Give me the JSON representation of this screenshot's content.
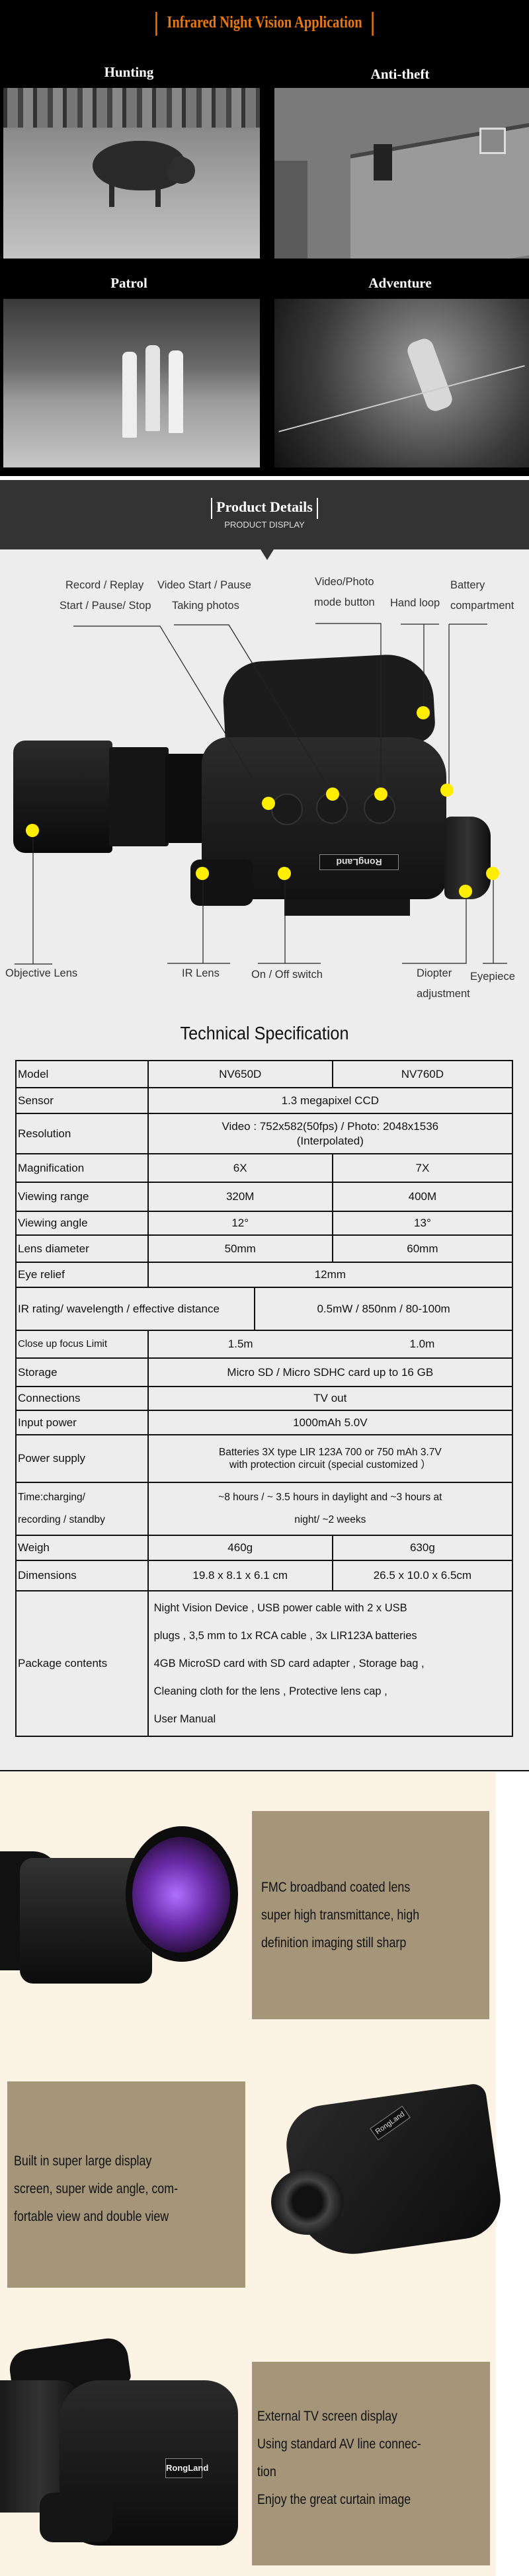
{
  "application": {
    "title": "Infrared Night Vision Application",
    "scenes": [
      {
        "label": "Hunting"
      },
      {
        "label": "Anti-theft"
      },
      {
        "label": "Patrol"
      },
      {
        "label": "Adventure"
      }
    ],
    "title_color": "#e8780f"
  },
  "product_details": {
    "title": "Product Details",
    "subtitle": "PRODUCT DISPLAY",
    "callouts": {
      "record_replay": "Record / Replay",
      "start_pause_stop": "Start / Pause/ Stop",
      "video_start_pause": "Video Start / Pause",
      "taking_photos": "Taking photos",
      "video_photo": "Video/Photo",
      "mode_button": "mode button",
      "hand_loop": "Hand loop",
      "battery": "Battery",
      "compartment": "compartment",
      "objective_lens": "Objective Lens",
      "ir_lens": "IR Lens",
      "on_off_switch": "On / Off switch",
      "diopter": "Diopter",
      "adjustment": "adjustment",
      "eyepiece": "Eyepiece"
    },
    "brand_plate": "RongLand",
    "marker_color": "#ffee00"
  },
  "spec": {
    "title": "Technical Specification",
    "rows": {
      "model": {
        "label": "Model",
        "a": "NV650D",
        "b": "NV760D"
      },
      "sensor": {
        "label": "Sensor",
        "value": "1.3 megapixel CCD"
      },
      "resolution": {
        "label": "Resolution",
        "value": "Video : 752x582(50fps) / Photo: 2048x1536",
        "value2": "(Interpolated)"
      },
      "magnification": {
        "label": "Magnification",
        "a": "6X",
        "b": "7X"
      },
      "viewing_range": {
        "label": "Viewing range",
        "a": "320M",
        "b": "400M"
      },
      "viewing_angle": {
        "label": "Viewing angle",
        "a": "12°",
        "b": "13°"
      },
      "lens_diameter": {
        "label": "Lens diameter",
        "a": "50mm",
        "b": "60mm"
      },
      "eye_relief": {
        "label": "Eye relief",
        "value": "12mm"
      },
      "ir_rating": {
        "label": "IR rating/ wavelength / effective distance",
        "value": "0.5mW / 850nm / 80-100m"
      },
      "close_up": {
        "label": "Close up focus Limit",
        "a": "1.5m",
        "b": "1.0m"
      },
      "storage": {
        "label": "Storage",
        "value": "Micro SD / Micro SDHC card up to 16 GB"
      },
      "connections": {
        "label": "Connections",
        "value": "TV out"
      },
      "input_power": {
        "label": "Input power",
        "value": "1000mAh 5.0V"
      },
      "power_supply": {
        "label": "Power supply",
        "value": "Batteries 3X type LIR 123A 700 or 750 mAh 3.7V",
        "value2": "with protection circuit (special customized ）"
      },
      "time": {
        "label": "Time:charging/",
        "label2": "recording / standby",
        "value": "~8 hours / ~ 3.5 hours in daylight and ~3 hours at",
        "value2": "night/ ~2 weeks"
      },
      "weigh": {
        "label": "Weigh",
        "a": "460g",
        "b": "630g"
      },
      "dimensions": {
        "label": "Dimensions",
        "a": "19.8 x 8.1 x 6.1 cm",
        "b": "26.5 x 10.0 x 6.5cm"
      },
      "package": {
        "label": "Package contents",
        "lines": [
          "Night Vision Device , USB power cable with 2 x USB",
          "plugs , 3,5 mm to 1x RCA cable , 3x LIR123A batteries",
          "4GB MicroSD card with SD card adapter , Storage bag ,",
          "Cleaning cloth for the lens , Protective lens cap ,",
          "User Manual"
        ]
      }
    }
  },
  "features": [
    {
      "lines": [
        "FMC broadband coated lens",
        "super high transmittance, high",
        "definition imaging still sharp"
      ]
    },
    {
      "lines": [
        "Built in super large display",
        "screen, super wide angle, com-",
        "fortable view and double view"
      ]
    },
    {
      "lines": [
        "External TV screen display",
        "Using standard AV line connec-",
        "tion",
        "Enjoy the great curtain image"
      ]
    }
  ],
  "feature_panel_color": "#a69679",
  "feature_bg_color": "#fdf3e4"
}
